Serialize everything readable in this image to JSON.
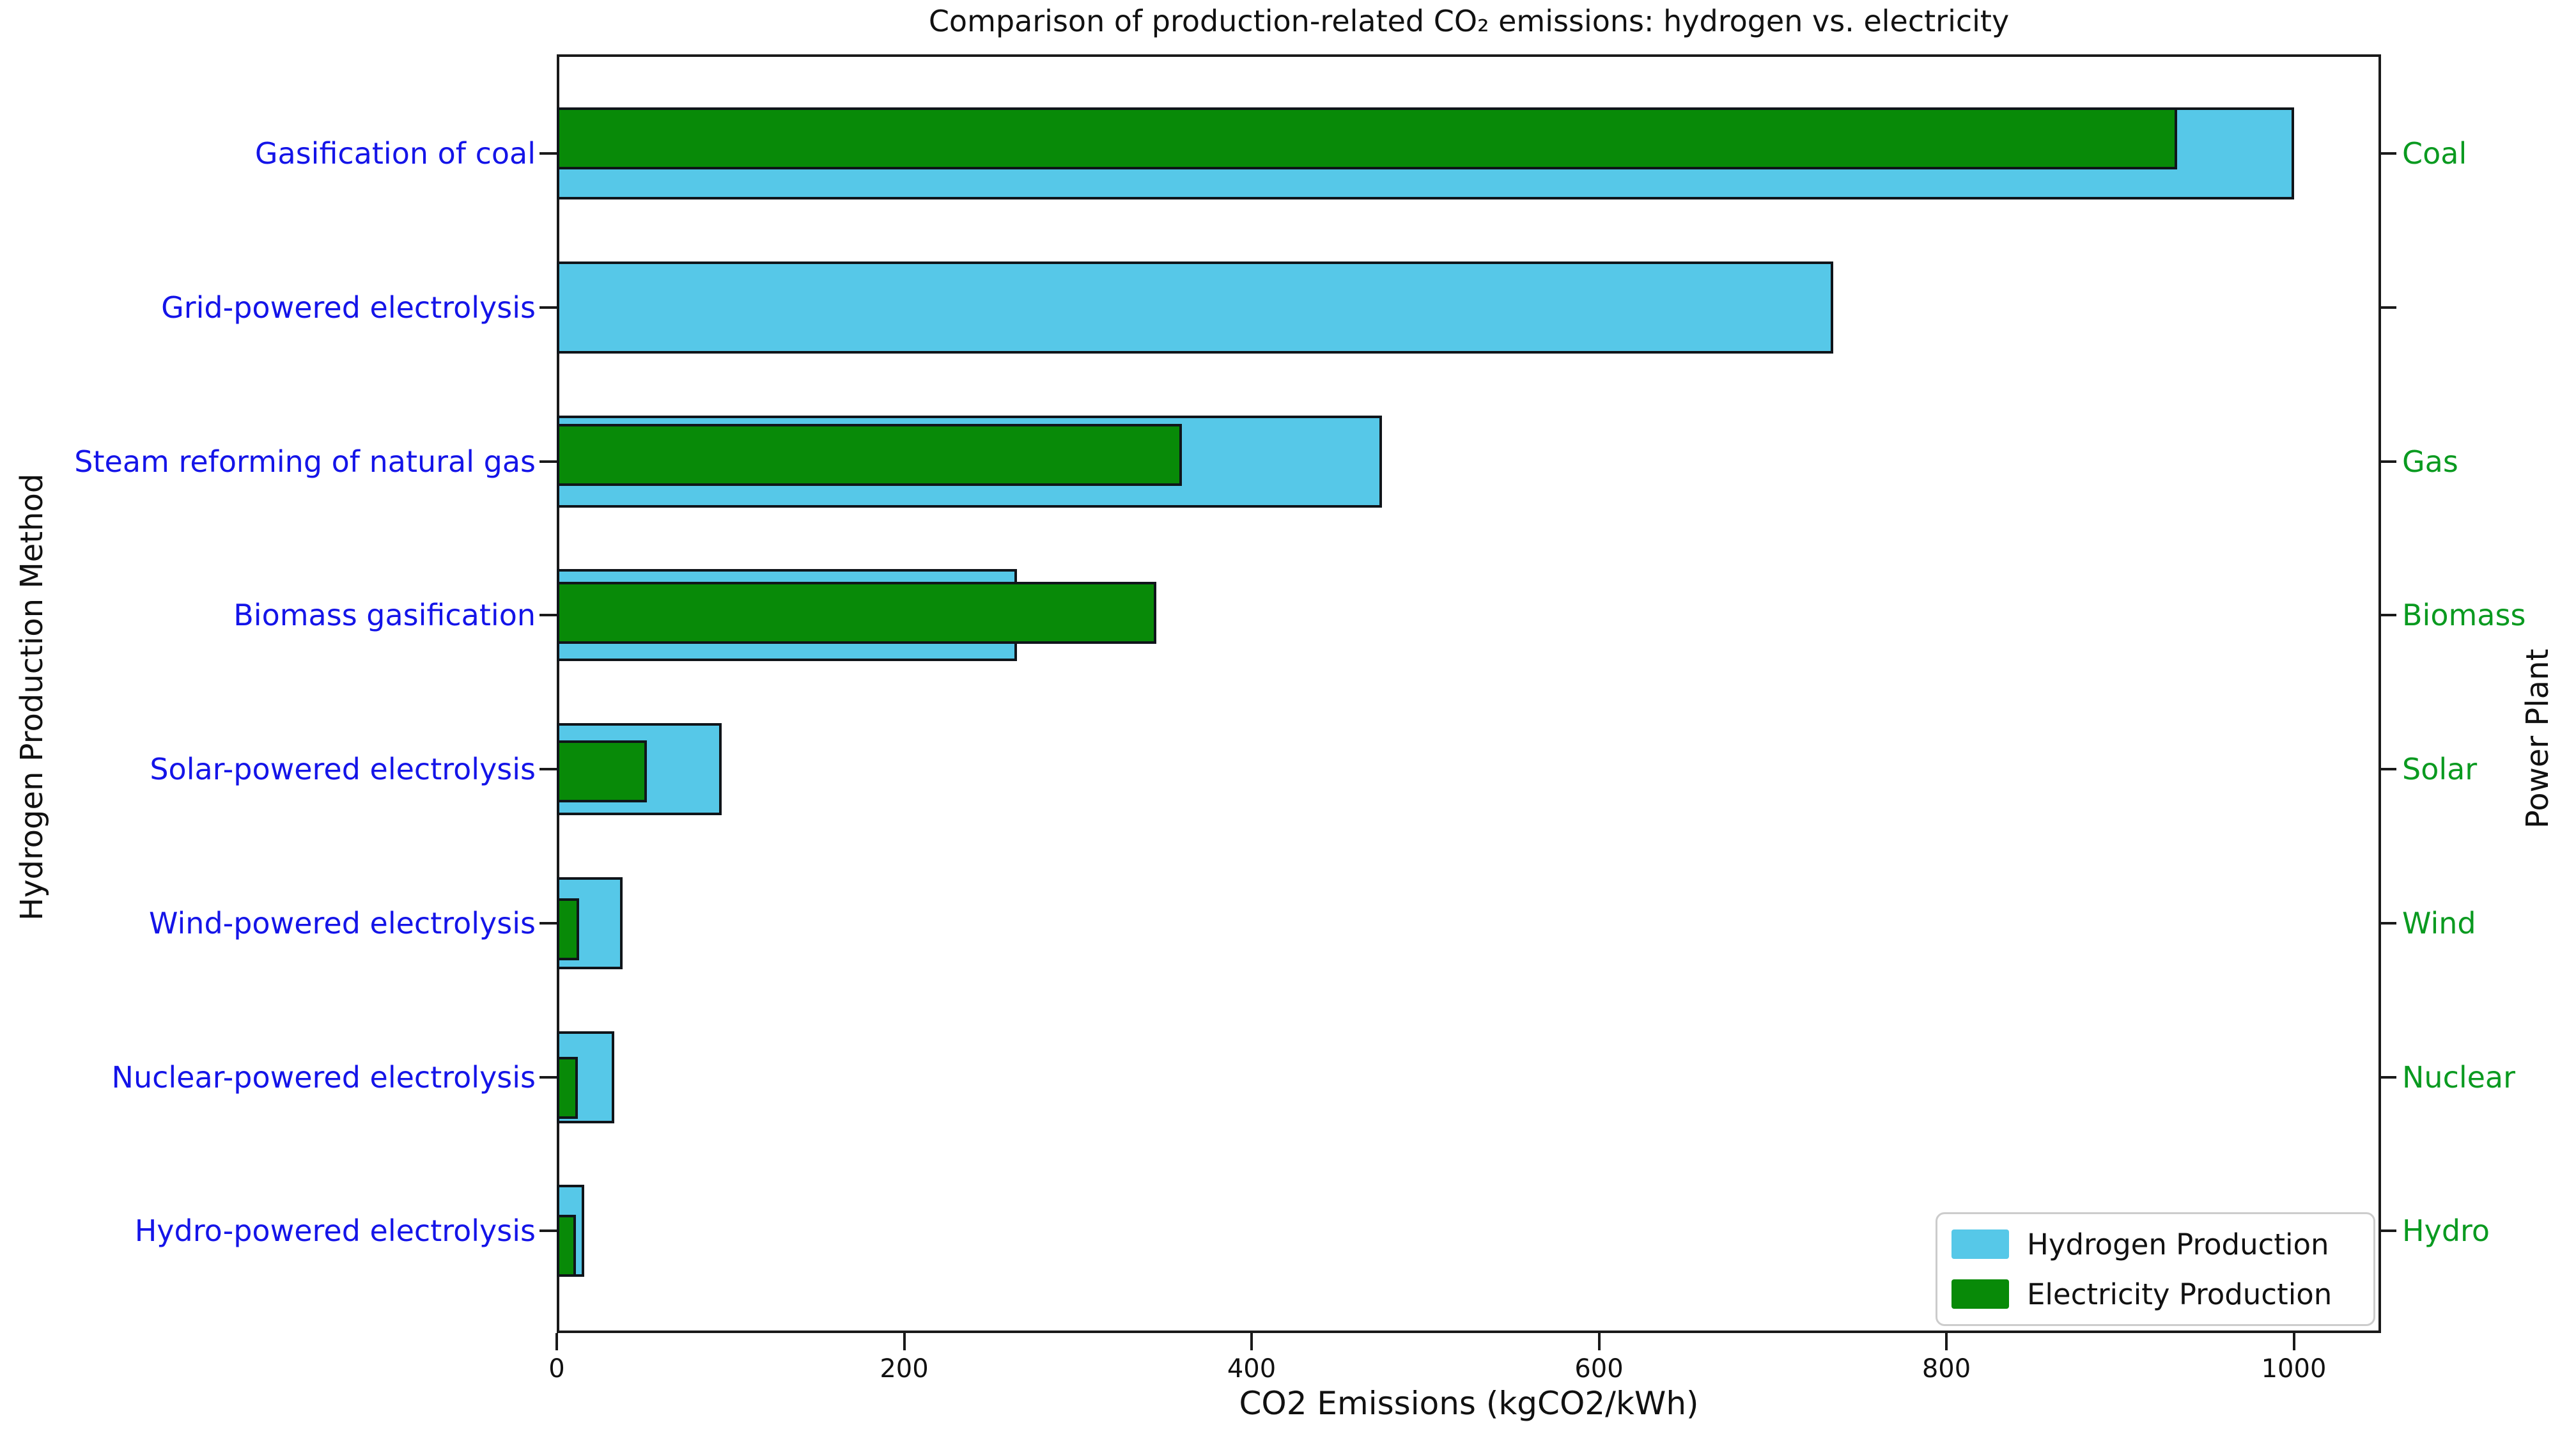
{
  "title": "Comparison of production-related CO₂ emissions: hydrogen vs. electricity",
  "axes": {
    "xlabel": "CO2 Emissions (kgCO2/kWh)",
    "ylabel_left": "Hydrogen Production Method",
    "ylabel_right": "Power Plant"
  },
  "legend": {
    "items": [
      {
        "label": "Hydrogen Production",
        "color": "#56c8e8"
      },
      {
        "label": "Electricity Production",
        "color": "#088a08"
      }
    ]
  },
  "colors": {
    "hydrogen_bar": "#56c8e8",
    "electricity_bar": "#088a08",
    "bar_edge": "#10151a",
    "method_label_text": "#1414e8",
    "plant_label_text": "#0a9a20",
    "axis_text": "#111111"
  },
  "chart_data": {
    "type": "bar",
    "orientation": "horizontal",
    "title": "Comparison of production-related CO₂ emissions: hydrogen vs. electricity",
    "xlabel": "CO2 Emissions (kgCO2/kWh)",
    "ylabel_left": "Hydrogen Production Method",
    "ylabel_right": "Power Plant",
    "xlim": [
      0,
      1050
    ],
    "x_tick_values": [
      0,
      200,
      400,
      600,
      800,
      1000
    ],
    "grid": false,
    "legend_position": "lower right",
    "categories": [
      "Gasification of coal",
      "Grid-powered electrolysis",
      "Steam reforming of natural gas",
      "Biomass gasification",
      "Solar-powered electrolysis",
      "Wind-powered electrolysis",
      "Nuclear-powered electrolysis",
      "Hydro-powered electrolysis"
    ],
    "right_categories": [
      "Coal",
      "",
      "Gas",
      "Biomass",
      "Solar",
      "Wind",
      "Nuclear",
      "Hydro"
    ],
    "series": [
      {
        "name": "Hydrogen Production",
        "color": "#56c8e8",
        "values": [
          1000,
          735,
          475,
          265,
          95,
          38,
          33,
          16
        ]
      },
      {
        "name": "Electricity Production",
        "color": "#088a08",
        "values": [
          933,
          null,
          360,
          345,
          52,
          13,
          12,
          11
        ]
      }
    ]
  }
}
